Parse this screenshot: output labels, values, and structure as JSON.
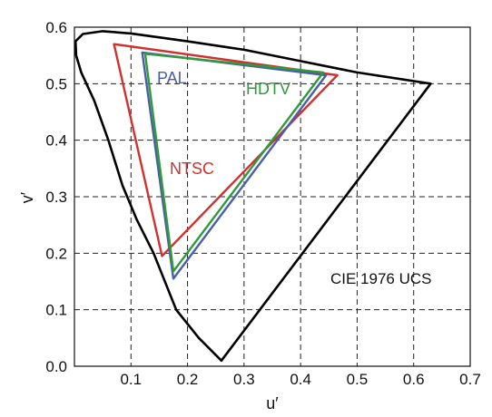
{
  "chart_data": {
    "type": "line",
    "title": "",
    "xlabel": "u′",
    "ylabel": "v′",
    "xlim": [
      0.0,
      0.7
    ],
    "ylim": [
      0.0,
      0.6
    ],
    "xticks": [
      "0.1",
      "0.2",
      "0.3",
      "0.4",
      "0.5",
      "0.6",
      "0.7"
    ],
    "yticks": [
      "0.0",
      "0.1",
      "0.2",
      "0.3",
      "0.4",
      "0.5",
      "0.6"
    ],
    "grid": true,
    "annotation": "CIE 1976 UCS",
    "series": [
      {
        "name": "",
        "color": "#000000",
        "closed": true,
        "points": [
          [
            0.26,
            0.01
          ],
          [
            0.22,
            0.05
          ],
          [
            0.18,
            0.1
          ],
          [
            0.14,
            0.2
          ],
          [
            0.11,
            0.26
          ],
          [
            0.085,
            0.32
          ],
          [
            0.06,
            0.4
          ],
          [
            0.035,
            0.47
          ],
          [
            0.012,
            0.52
          ],
          [
            0.003,
            0.55
          ],
          [
            0.002,
            0.575
          ],
          [
            0.015,
            0.588
          ],
          [
            0.05,
            0.593
          ],
          [
            0.1,
            0.589
          ],
          [
            0.2,
            0.575
          ],
          [
            0.3,
            0.56
          ],
          [
            0.4,
            0.54
          ],
          [
            0.5,
            0.52
          ],
          [
            0.63,
            0.5
          ]
        ]
      },
      {
        "name": "NTSC",
        "color": "#d03030",
        "closed": true,
        "points": [
          [
            0.07,
            0.57
          ],
          [
            0.465,
            0.515
          ],
          [
            0.155,
            0.195
          ]
        ]
      },
      {
        "name": "PAL",
        "color": "#4a5ea8",
        "closed": true,
        "points": [
          [
            0.12,
            0.555
          ],
          [
            0.445,
            0.515
          ],
          [
            0.175,
            0.155
          ]
        ]
      },
      {
        "name": "HDTV",
        "color": "#2e9a38",
        "closed": true,
        "points": [
          [
            0.125,
            0.553
          ],
          [
            0.44,
            0.52
          ],
          [
            0.175,
            0.168
          ]
        ]
      }
    ]
  }
}
